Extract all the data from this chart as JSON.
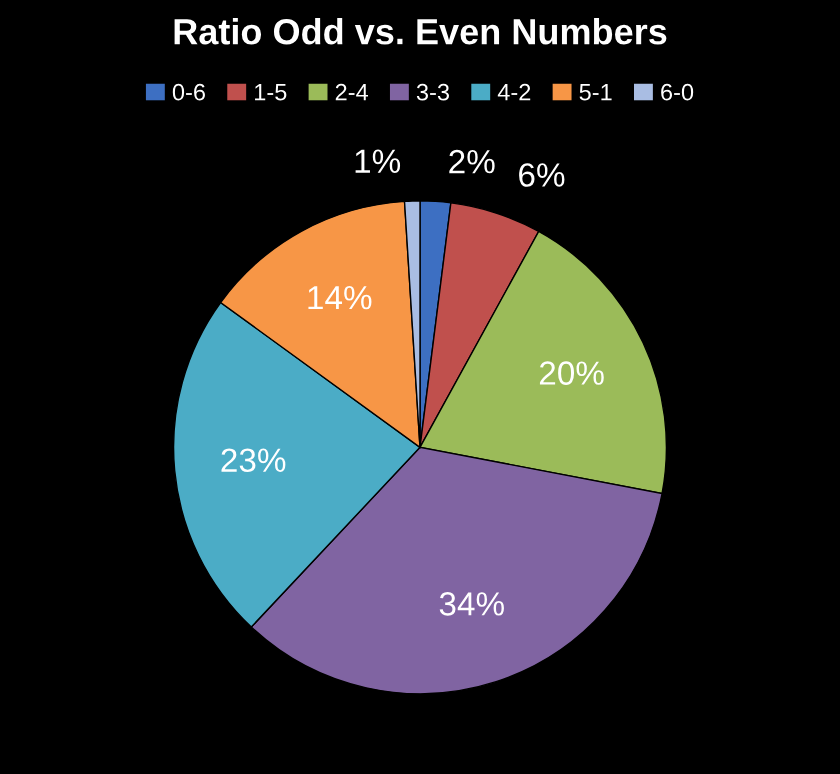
{
  "chart_data": {
    "type": "pie",
    "title": "Ratio Odd vs. Even Numbers",
    "categories": [
      "0-6",
      "1-5",
      "2-4",
      "3-3",
      "4-2",
      "5-1",
      "6-0"
    ],
    "values": [
      2,
      6,
      20,
      34,
      23,
      14,
      1
    ],
    "value_labels": [
      "2%",
      "6%",
      "20%",
      "34%",
      "23%",
      "14%",
      "1%"
    ],
    "colors": [
      "#3d6fc2",
      "#c0504d",
      "#9bbb59",
      "#8064a2",
      "#4bacc6",
      "#f79646",
      "#a9bde3"
    ],
    "legend": "top"
  }
}
